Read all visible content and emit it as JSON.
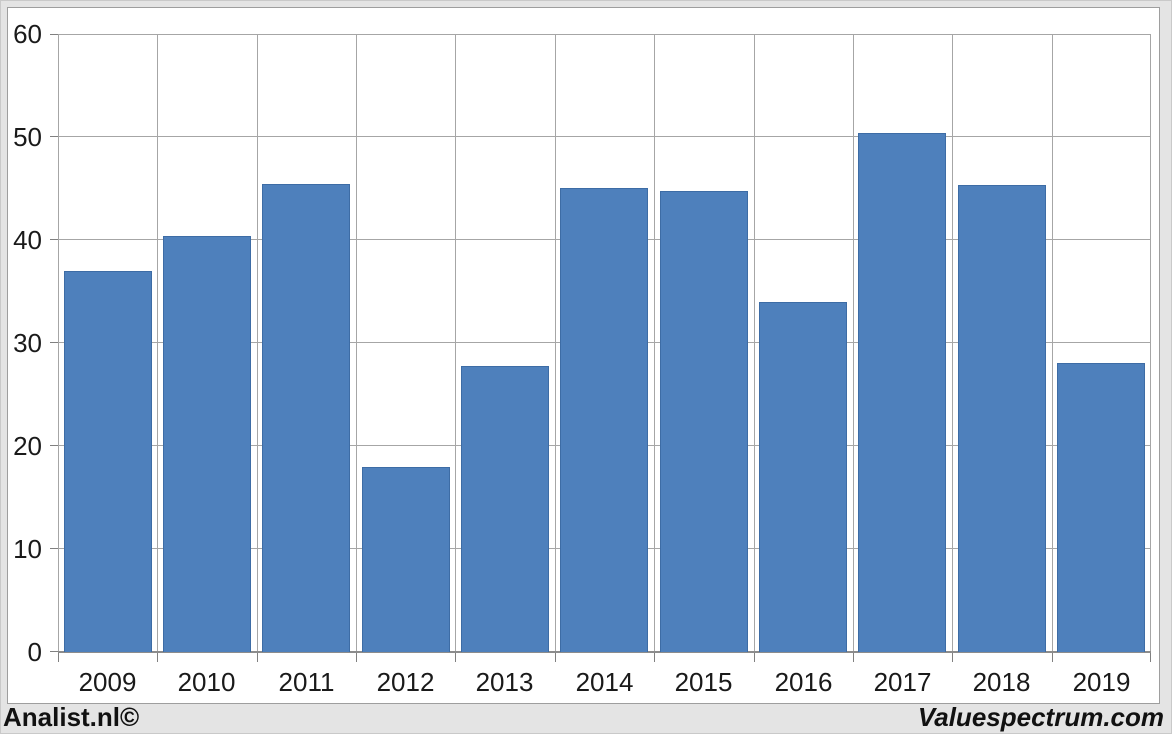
{
  "chart_data": {
    "type": "bar",
    "title": "",
    "xlabel": "",
    "ylabel": "",
    "categories": [
      "2009",
      "2010",
      "2011",
      "2012",
      "2013",
      "2014",
      "2015",
      "2016",
      "2017",
      "2018",
      "2019"
    ],
    "values": [
      37.0,
      40.4,
      45.4,
      18.0,
      27.8,
      45.0,
      44.8,
      34.0,
      50.4,
      45.3,
      28.1
    ],
    "ylim": [
      0,
      60
    ],
    "ytick_interval": 10,
    "ytick_labels": [
      "0",
      "10",
      "20",
      "30",
      "40",
      "50",
      "60"
    ],
    "grid": {
      "horizontal": true,
      "vertical": true
    },
    "legend_position": "none"
  },
  "footer": {
    "left_text": "Analist.nl©",
    "right_text": "Valuespectrum.com"
  },
  "colors": {
    "page_background": "#E4E4E4",
    "panel_background": "#FFFFFF",
    "panel_border": "#9E9E9E",
    "bar_fill": "#4E80BC",
    "bar_border": "#3D6CA5",
    "gridline": "#A6A6A6",
    "axis_line": "#8C8C8C",
    "tick": "#808080",
    "label_text": "#1A1A1A",
    "footer_text": "#111111"
  }
}
